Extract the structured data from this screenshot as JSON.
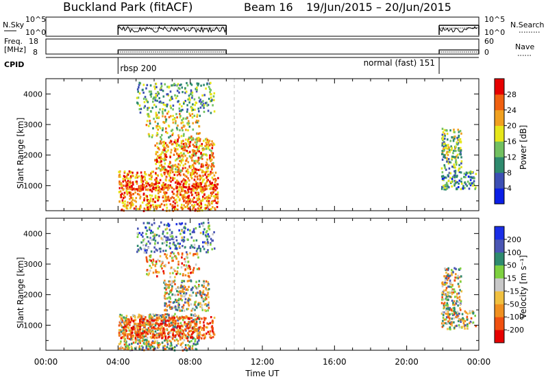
{
  "header": {
    "station": "Buckland Park (fitACF)",
    "beam": "Beam 16",
    "date_range": "19/Jun/2015 – 20/Jun/2015"
  },
  "status_panels": {
    "nsky_label": "N.Sky",
    "nsky_ticks": [
      "10^5",
      "10^0"
    ],
    "nsearch_label": "N.Search",
    "nsearch_ticks": [
      "10^5",
      "10^0"
    ],
    "freq_label_line1": "Freq.",
    "freq_label_line2": "[MHz]",
    "freq_ticks": [
      "18",
      "8"
    ],
    "nave_label": "Nave",
    "nave_ticks": [
      "60",
      "0"
    ],
    "cpid_label": "CPID",
    "cpid_segments": [
      {
        "label": "rbsp 200",
        "start_h": 4.0,
        "end_h": 10.0
      },
      {
        "label": "normal (fast) 151",
        "start_h": 21.8,
        "end_h": 24.0
      }
    ]
  },
  "axes": {
    "xlabel": "Time UT",
    "x_ticks": [
      "00:00",
      "04:00",
      "08:00",
      "12:00",
      "16:00",
      "20:00",
      "00:00"
    ],
    "ylabel": "Slant Range [km]",
    "y_ticks": [
      "1000",
      "2000",
      "3000",
      "4000"
    ]
  },
  "power_colorbar": {
    "label": "Power [dB]",
    "ticks": [
      "4",
      "8",
      "12",
      "16",
      "20",
      "24",
      "28"
    ],
    "colors": [
      "#0a1ee6",
      "#3c4fb4",
      "#2e8a6e",
      "#72c060",
      "#e6e61a",
      "#f0a020",
      "#f06010",
      "#e60000"
    ]
  },
  "velocity_colorbar": {
    "label": "Velocity [m s⁻¹]",
    "ticks": [
      "200",
      "100",
      "50",
      "15",
      "-15",
      "-50",
      "-100",
      "-200"
    ],
    "colors": [
      "#1a2ee6",
      "#4a56b4",
      "#2e8a6e",
      "#7ed040",
      "#c8c8c8",
      "#f0c040",
      "#f09020",
      "#f05010",
      "#e60000"
    ]
  },
  "chart_data": [
    {
      "type": "heatmap",
      "panel": "power",
      "ylabel": "Slant Range [km]",
      "xlabel": "Time UT",
      "x_range_h": [
        0,
        24
      ],
      "y_range_km": [
        180,
        4500
      ],
      "value_unit": "dB",
      "regions": [
        {
          "t0": 4.0,
          "t1": 9.5,
          "r0": 200,
          "r1": 1500,
          "level": 24
        },
        {
          "t0": 4.0,
          "t1": 9.5,
          "r0": 900,
          "r1": 1100,
          "level": 28
        },
        {
          "t0": 6.0,
          "t1": 9.3,
          "r0": 1500,
          "r1": 2600,
          "level": 22
        },
        {
          "t0": 5.5,
          "t1": 8.5,
          "r0": 2600,
          "r1": 3400,
          "level": 18
        },
        {
          "t0": 5.0,
          "t1": 9.3,
          "r0": 3400,
          "r1": 4400,
          "level": 12
        },
        {
          "t0": 21.9,
          "t1": 23.8,
          "r0": 900,
          "r1": 1500,
          "level": 10
        },
        {
          "t0": 21.9,
          "t1": 23.0,
          "r0": 1500,
          "r1": 2900,
          "level": 14
        }
      ]
    },
    {
      "type": "heatmap",
      "panel": "velocity",
      "ylabel": "Slant Range [km]",
      "xlabel": "Time UT",
      "x_range_h": [
        0,
        24
      ],
      "y_range_km": [
        180,
        4500
      ],
      "value_unit": "m s^-1",
      "regions": [
        {
          "t0": 4.0,
          "t1": 8.5,
          "r0": 200,
          "r1": 1400,
          "level": 0
        },
        {
          "t0": 4.0,
          "t1": 9.3,
          "r0": 600,
          "r1": 1300,
          "level": -150
        },
        {
          "t0": 6.5,
          "t1": 9.0,
          "r0": 1500,
          "r1": 2500,
          "level": 0
        },
        {
          "t0": 5.5,
          "t1": 8.5,
          "r0": 2600,
          "r1": 3400,
          "level": -80
        },
        {
          "t0": 5.0,
          "t1": 9.3,
          "r0": 3400,
          "r1": 4400,
          "level": 100
        },
        {
          "t0": 21.9,
          "t1": 23.8,
          "r0": 900,
          "r1": 1500,
          "level": 0
        },
        {
          "t0": 21.9,
          "t1": 23.0,
          "r0": 1500,
          "r1": 2900,
          "level": 0
        }
      ]
    }
  ]
}
